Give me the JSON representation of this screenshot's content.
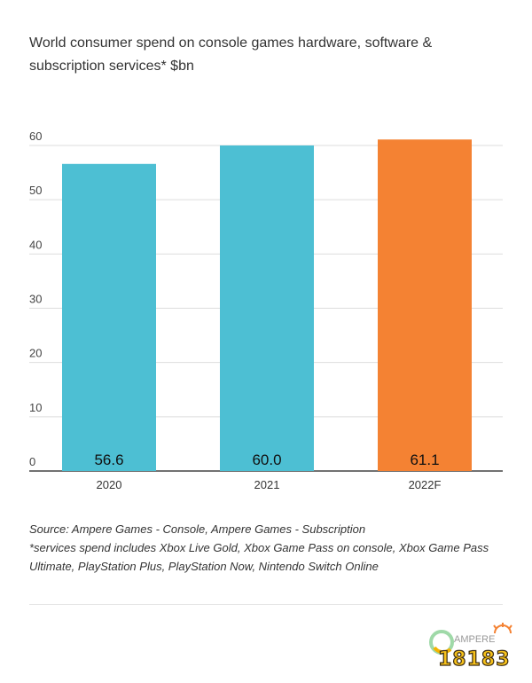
{
  "chart_data": {
    "type": "bar",
    "title": "World consumer spend on console games hardware, software & subscription services* $bn",
    "categories": [
      "2020",
      "2021",
      "2022F"
    ],
    "values": [
      56.6,
      60.0,
      61.1
    ],
    "value_labels": [
      "56.6",
      "60.0",
      "61.1"
    ],
    "bar_colors": [
      "#4dbfd3",
      "#4dbfd3",
      "#f48233"
    ],
    "ylim": [
      0,
      60
    ],
    "yticks": [
      0,
      10,
      20,
      30,
      40,
      50,
      60
    ],
    "grid": true,
    "xlabel": "",
    "ylabel": ""
  },
  "notes": {
    "source": "Source: Ampere Games - Console, Ampere Games - Subscription",
    "footnote": "*services spend includes Xbox Live Gold, Xbox Game Pass on console, Xbox Game Pass Ultimate, PlayStation Plus, PlayStation Now, Nintendo Switch Online"
  },
  "logo": {
    "brand_text": "AMPERE",
    "watermark_text": "18183"
  }
}
